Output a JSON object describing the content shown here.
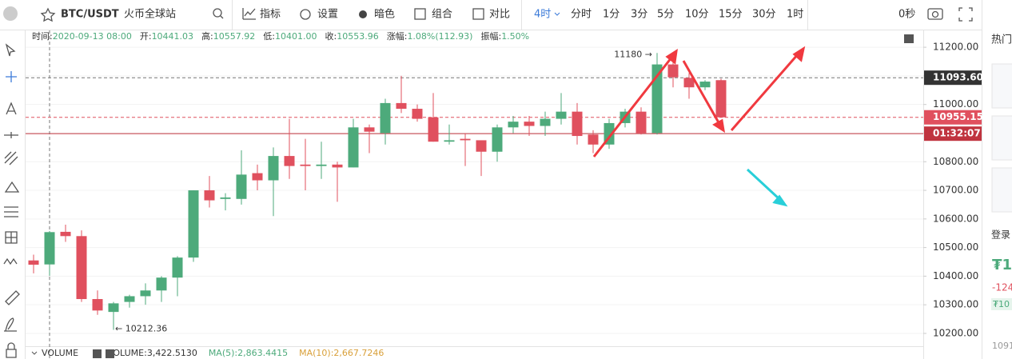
{
  "toolbar": {
    "symbol": "BTC/USDT",
    "exchange": "火币全球站",
    "items": [
      "指标",
      "设置",
      "暗色",
      "组合",
      "对比"
    ],
    "intervals": [
      "4时",
      "分时",
      "1分",
      "3分",
      "5分",
      "10分",
      "15分",
      "30分",
      "1时"
    ],
    "countdown": "0秒"
  },
  "chart_data": {
    "type": "candlestick",
    "info": [
      {
        "label": "时间:",
        "value": "2020-09-13 08:00"
      },
      {
        "label": "开:",
        "value": "10441.03"
      },
      {
        "label": "高:",
        "value": "10557.92"
      },
      {
        "label": "低:",
        "value": "10401.00"
      },
      {
        "label": "收:",
        "value": "10553.96"
      },
      {
        "label": "涨幅:",
        "value": "1.08%(112.93)"
      },
      {
        "label": "振幅:",
        "value": "1.50%"
      }
    ],
    "open": [
      10455,
      10441.03,
      10555,
      10540,
      10320,
      10275,
      10310,
      10330,
      10350,
      10395,
      10465,
      10700,
      10670,
      10670,
      10760,
      10735,
      10820,
      10790,
      10785,
      10790,
      10780,
      10920,
      10900,
      11005,
      10985,
      10955,
      10870,
      10880,
      10875,
      10835,
      10920,
      10940,
      10925,
      10950,
      10975,
      10895,
      10860,
      10935,
      10975,
      10900,
      11140,
      11093,
      11060,
      11085
    ],
    "high": [
      10475,
      10557.92,
      10580,
      10560,
      10350,
      10310,
      10335,
      10375,
      10400,
      10470,
      10700,
      10750,
      10690,
      10840,
      10790,
      10850,
      10950,
      10880,
      10870,
      10800,
      10950,
      10930,
      11020,
      11100,
      11000,
      11040,
      10930,
      10900,
      10870,
      10930,
      10960,
      10960,
      10975,
      11040,
      11005,
      10910,
      10950,
      10985,
      10990,
      11180,
      11150,
      11110,
      11085,
      11090
    ],
    "low": [
      10410,
      10401,
      10520,
      10310,
      10265,
      10212.36,
      10290,
      10300,
      10310,
      10330,
      10450,
      10640,
      10630,
      10650,
      10700,
      10610,
      10740,
      10700,
      10740,
      10660,
      10780,
      10830,
      10860,
      10970,
      10940,
      10870,
      10860,
      10785,
      10750,
      10800,
      10900,
      10890,
      10890,
      10930,
      10860,
      10830,
      10845,
      10920,
      10895,
      10895,
      11060,
      11020,
      11050,
      10955.15
    ],
    "close": [
      10440,
      10553.96,
      10540,
      10320,
      10280,
      10305,
      10330,
      10350,
      10395,
      10465,
      10700,
      10665,
      10675,
      10755,
      10735,
      10820,
      10785,
      10785,
      10790,
      10780,
      10920,
      10905,
      11005,
      10985,
      10950,
      10870,
      10875,
      10875,
      10835,
      10920,
      10940,
      10925,
      10950,
      10975,
      10890,
      10860,
      10935,
      10975,
      10900,
      11140,
      11095,
      11060,
      11080,
      10955.15
    ],
    "up_color": "#4daa7b",
    "down_color": "#e0505e",
    "ylim": [
      10158,
      11259
    ],
    "yticks": [
      {
        "value": 10200,
        "label": "10200.00"
      },
      {
        "value": 10300,
        "label": "10300.00"
      },
      {
        "value": 10400,
        "label": "10400.00"
      },
      {
        "value": 10500,
        "label": "10500.00"
      },
      {
        "value": 10600,
        "label": "10600.00"
      },
      {
        "value": 10700,
        "label": "10700.00"
      },
      {
        "value": 10800,
        "label": "10800.00"
      },
      {
        "value": 10900,
        "label": "10900.00"
      },
      {
        "value": 11000,
        "label": "11000.00"
      },
      {
        "value": 11100,
        "label": "11100.00"
      },
      {
        "value": 11200,
        "label": "11200.00"
      }
    ],
    "grid": true,
    "max_label": "11180 →",
    "min_label": "← 10212.36",
    "crosshair": {
      "value": 11093.6,
      "label": "11093.60",
      "color": "#333333"
    },
    "last_price": {
      "value": 10955.15,
      "label": "10955.15",
      "color": "#e0505e"
    },
    "countdown_line": {
      "value": 10898,
      "label": "01:32:07",
      "color": "#c0343f"
    },
    "volume_info": [
      {
        "text": "VOLUME",
        "color": "#333333"
      },
      {
        "text": "VOLUME:3,422.5130",
        "color": "#333333"
      },
      {
        "text": "MA(5):2,863.4415",
        "color": "#4daa7b"
      },
      {
        "text": "MA(10):2,667.7246",
        "color": "#d9a03a"
      }
    ]
  },
  "side_panel": {
    "title": "热门",
    "login": "登录",
    "price": "₮1",
    "change": "-124",
    "sub": "₮10",
    "bottom": "1091"
  }
}
